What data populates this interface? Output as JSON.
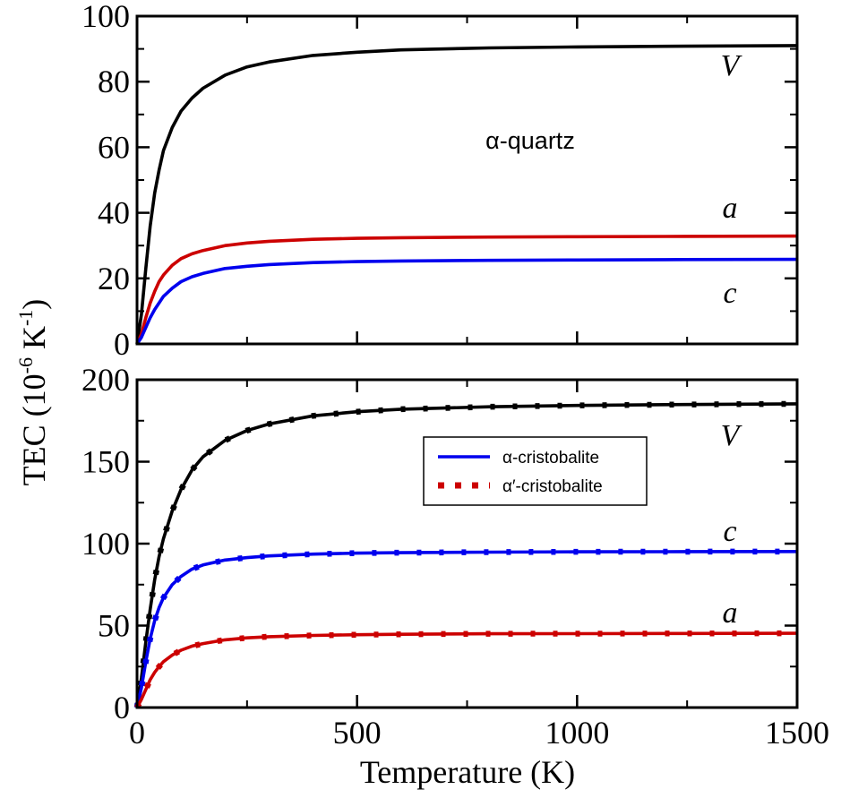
{
  "chart_data": [
    {
      "type": "line",
      "panel": "top",
      "annotation": "α-quartz",
      "xlim": [
        0,
        1500
      ],
      "ylim": [
        0,
        100
      ],
      "yticks": [
        0,
        20,
        40,
        60,
        80,
        100
      ],
      "xticks": [
        0,
        500,
        1000,
        1500
      ],
      "x": [
        0,
        10,
        20,
        30,
        40,
        50,
        60,
        80,
        100,
        125,
        150,
        200,
        250,
        300,
        400,
        500,
        600,
        800,
        1000,
        1200,
        1500
      ],
      "series": [
        {
          "label": "V",
          "color": "#000000",
          "style": "solid",
          "values": [
            0,
            9,
            23,
            36,
            46,
            53,
            59,
            66,
            71,
            75,
            78,
            82,
            84.5,
            86,
            88,
            89,
            89.7,
            90.3,
            90.6,
            90.8,
            91
          ]
        },
        {
          "label": "a",
          "color": "#cc0000",
          "style": "solid",
          "values": [
            0,
            3,
            8,
            12.5,
            16,
            19,
            21,
            24,
            26,
            27.5,
            28.5,
            30,
            30.8,
            31.3,
            31.9,
            32.2,
            32.4,
            32.6,
            32.7,
            32.8,
            32.9
          ]
        },
        {
          "label": "c",
          "color": "#0000ee",
          "style": "solid",
          "values": [
            0,
            2,
            5,
            8,
            10.5,
            12.5,
            14.5,
            17,
            19,
            20.5,
            21.5,
            23,
            23.7,
            24.2,
            24.8,
            25.1,
            25.3,
            25.5,
            25.6,
            25.7,
            25.8
          ]
        }
      ]
    },
    {
      "type": "line",
      "panel": "bottom",
      "xlabel": "Temperature (K)",
      "xlim": [
        0,
        1500
      ],
      "ylim": [
        0,
        200
      ],
      "yticks": [
        0,
        50,
        100,
        150,
        200
      ],
      "xticks": [
        0,
        500,
        1000,
        1500
      ],
      "x": [
        0,
        10,
        20,
        30,
        40,
        50,
        60,
        80,
        100,
        125,
        150,
        200,
        250,
        300,
        400,
        500,
        600,
        800,
        1000,
        1200,
        1500
      ],
      "series": [
        {
          "label": "V",
          "color": "#000000",
          "style": "solid",
          "values": [
            0,
            18,
            40,
            60,
            78,
            92,
            103,
            120,
            133,
            145,
            153,
            163,
            169,
            173,
            178,
            180.5,
            182,
            183.5,
            184.3,
            184.8,
            185.3
          ]
        },
        {
          "label": "c",
          "color": "#0000ee",
          "style": "solid",
          "values": [
            0,
            12,
            28,
            42,
            53,
            61,
            67,
            75,
            80,
            84.5,
            87,
            90,
            91.5,
            92.5,
            93.6,
            94.2,
            94.5,
            94.8,
            95,
            95.1,
            95.2
          ]
        },
        {
          "label": "a",
          "color": "#cc0000",
          "style": "solid",
          "values": [
            0,
            5,
            11,
            17,
            21.5,
            25,
            28,
            32,
            35,
            37.5,
            39,
            41.3,
            42.5,
            43.2,
            44,
            44.4,
            44.7,
            45,
            45.1,
            45.2,
            45.3
          ]
        }
      ],
      "legend": [
        {
          "name": "α-cristobalite",
          "color": "#0000ee",
          "style": "solid"
        },
        {
          "name": "α′-cristobalite",
          "color": "#cc0000",
          "style": "dotted"
        }
      ],
      "legend_position": "center-right"
    }
  ],
  "ylabel_main": "TEC (10",
  "ylabel_exp1": "-6",
  "ylabel_unit": " K",
  "ylabel_exp2": "-1",
  "ylabel_close": ")"
}
